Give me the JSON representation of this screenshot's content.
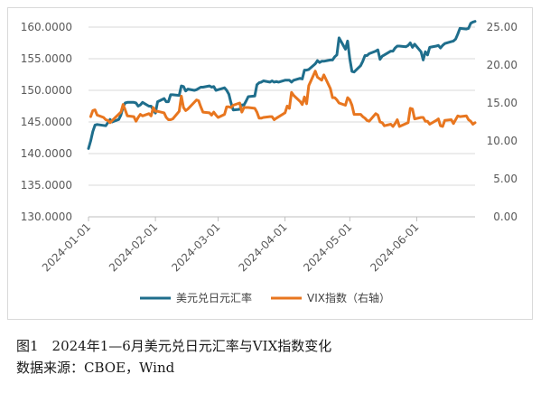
{
  "chart_data": {
    "type": "line",
    "left_axis": {
      "min": 130,
      "max": 160,
      "ticks": [
        "160.0000",
        "155.0000",
        "150.0000",
        "145.0000",
        "140.0000",
        "135.0000",
        "130.0000"
      ]
    },
    "right_axis": {
      "min": 0,
      "max": 25,
      "ticks": [
        "25.00",
        "20.00",
        "15.00",
        "10.00",
        "5.00",
        "0.00"
      ]
    },
    "x_ticks": [
      "2024-01-01",
      "2024-02-01",
      "2024-03-01",
      "2024-04-01",
      "2024-05-01",
      "2024-06-01"
    ],
    "x_range": [
      "2024-01-01",
      "2024-06-28"
    ],
    "grid": true,
    "legend_position": "bottom",
    "series": [
      {
        "name": "美元兑日元汇率",
        "axis": "left",
        "color": "#1f6e8c",
        "points": [
          [
            "2024-01-01",
            140.8
          ],
          [
            "2024-01-02",
            142.0
          ],
          [
            "2024-01-03",
            143.5
          ],
          [
            "2024-01-04",
            144.5
          ],
          [
            "2024-01-05",
            144.6
          ],
          [
            "2024-01-09",
            144.4
          ],
          [
            "2024-01-10",
            144.9
          ],
          [
            "2024-01-11",
            145.4
          ],
          [
            "2024-01-12",
            145.0
          ],
          [
            "2024-01-15",
            145.4
          ],
          [
            "2024-01-16",
            146.1
          ],
          [
            "2024-01-17",
            147.4
          ],
          [
            "2024-01-18",
            148.0
          ],
          [
            "2024-01-19",
            148.1
          ],
          [
            "2024-01-22",
            148.1
          ],
          [
            "2024-01-23",
            148.0
          ],
          [
            "2024-01-24",
            147.5
          ],
          [
            "2024-01-25",
            147.7
          ],
          [
            "2024-01-26",
            148.1
          ],
          [
            "2024-01-29",
            147.5
          ],
          [
            "2024-01-30",
            147.5
          ],
          [
            "2024-01-31",
            146.9
          ],
          [
            "2024-02-01",
            146.4
          ],
          [
            "2024-02-02",
            148.2
          ],
          [
            "2024-02-05",
            148.7
          ],
          [
            "2024-02-06",
            148.2
          ],
          [
            "2024-02-07",
            148.2
          ],
          [
            "2024-02-08",
            149.3
          ],
          [
            "2024-02-09",
            149.3
          ],
          [
            "2024-02-12",
            149.2
          ],
          [
            "2024-02-13",
            150.7
          ],
          [
            "2024-02-14",
            150.6
          ],
          [
            "2024-02-15",
            149.9
          ],
          [
            "2024-02-16",
            150.2
          ],
          [
            "2024-02-19",
            150.0
          ],
          [
            "2024-02-20",
            150.1
          ],
          [
            "2024-02-21",
            150.3
          ],
          [
            "2024-02-22",
            150.5
          ],
          [
            "2024-02-23",
            150.5
          ],
          [
            "2024-02-26",
            150.7
          ],
          [
            "2024-02-27",
            150.5
          ],
          [
            "2024-02-28",
            150.6
          ],
          [
            "2024-02-29",
            150.0
          ],
          [
            "2024-03-01",
            150.1
          ],
          [
            "2024-03-04",
            150.4
          ],
          [
            "2024-03-05",
            150.0
          ],
          [
            "2024-03-06",
            149.4
          ],
          [
            "2024-03-07",
            148.0
          ],
          [
            "2024-03-08",
            146.9
          ],
          [
            "2024-03-11",
            147.0
          ],
          [
            "2024-03-12",
            147.7
          ],
          [
            "2024-03-13",
            147.7
          ],
          [
            "2024-03-14",
            148.3
          ],
          [
            "2024-03-15",
            149.0
          ],
          [
            "2024-03-18",
            149.1
          ],
          [
            "2024-03-19",
            150.9
          ],
          [
            "2024-03-20",
            151.2
          ],
          [
            "2024-03-21",
            151.3
          ],
          [
            "2024-03-22",
            151.5
          ],
          [
            "2024-03-25",
            151.3
          ],
          [
            "2024-03-26",
            151.5
          ],
          [
            "2024-03-27",
            151.3
          ],
          [
            "2024-03-28",
            151.4
          ],
          [
            "2024-03-29",
            151.3
          ],
          [
            "2024-04-01",
            151.6
          ],
          [
            "2024-04-02",
            151.6
          ],
          [
            "2024-04-03",
            151.6
          ],
          [
            "2024-04-04",
            151.3
          ],
          [
            "2024-04-05",
            151.6
          ],
          [
            "2024-04-08",
            151.9
          ],
          [
            "2024-04-09",
            151.8
          ],
          [
            "2024-04-10",
            153.2
          ],
          [
            "2024-04-11",
            153.2
          ],
          [
            "2024-04-12",
            153.3
          ],
          [
            "2024-04-15",
            154.2
          ],
          [
            "2024-04-16",
            154.7
          ],
          [
            "2024-04-17",
            154.4
          ],
          [
            "2024-04-18",
            154.6
          ],
          [
            "2024-04-19",
            154.6
          ],
          [
            "2024-04-22",
            154.8
          ],
          [
            "2024-04-23",
            154.8
          ],
          [
            "2024-04-24",
            155.3
          ],
          [
            "2024-04-25",
            155.6
          ],
          [
            "2024-04-26",
            158.3
          ],
          [
            "2024-04-29",
            156.5
          ],
          [
            "2024-04-30",
            157.8
          ],
          [
            "2024-05-01",
            155.0
          ],
          [
            "2024-05-02",
            153.0
          ],
          [
            "2024-05-03",
            152.9
          ],
          [
            "2024-05-06",
            153.9
          ],
          [
            "2024-05-07",
            154.6
          ],
          [
            "2024-05-08",
            155.5
          ],
          [
            "2024-05-09",
            155.5
          ],
          [
            "2024-05-10",
            155.8
          ],
          [
            "2024-05-13",
            156.2
          ],
          [
            "2024-05-14",
            156.4
          ],
          [
            "2024-05-15",
            154.9
          ],
          [
            "2024-05-16",
            155.4
          ],
          [
            "2024-05-17",
            155.6
          ],
          [
            "2024-05-20",
            156.2
          ],
          [
            "2024-05-21",
            156.2
          ],
          [
            "2024-05-22",
            156.7
          ],
          [
            "2024-05-23",
            157.0
          ],
          [
            "2024-05-24",
            157.0
          ],
          [
            "2024-05-27",
            156.9
          ],
          [
            "2024-05-28",
            157.1
          ],
          [
            "2024-05-29",
            157.5
          ],
          [
            "2024-05-30",
            156.8
          ],
          [
            "2024-05-31",
            157.3
          ],
          [
            "2024-06-03",
            156.1
          ],
          [
            "2024-06-04",
            154.8
          ],
          [
            "2024-06-05",
            156.1
          ],
          [
            "2024-06-06",
            155.6
          ],
          [
            "2024-06-07",
            156.8
          ],
          [
            "2024-06-10",
            157.0
          ],
          [
            "2024-06-11",
            157.1
          ],
          [
            "2024-06-12",
            156.7
          ],
          [
            "2024-06-13",
            157.1
          ],
          [
            "2024-06-14",
            157.4
          ],
          [
            "2024-06-17",
            157.7
          ],
          [
            "2024-06-18",
            157.8
          ],
          [
            "2024-06-19",
            158.1
          ],
          [
            "2024-06-20",
            158.9
          ],
          [
            "2024-06-21",
            159.8
          ],
          [
            "2024-06-24",
            159.7
          ],
          [
            "2024-06-25",
            159.8
          ],
          [
            "2024-06-26",
            160.6
          ],
          [
            "2024-06-27",
            160.8
          ],
          [
            "2024-06-28",
            160.9
          ]
        ]
      },
      {
        "name": "VIX指数（右轴）",
        "axis": "right",
        "color": "#e8761f",
        "points": [
          [
            "2024-01-02",
            13.2
          ],
          [
            "2024-01-03",
            14.0
          ],
          [
            "2024-01-04",
            14.1
          ],
          [
            "2024-01-05",
            13.4
          ],
          [
            "2024-01-08",
            13.1
          ],
          [
            "2024-01-09",
            12.8
          ],
          [
            "2024-01-10",
            12.7
          ],
          [
            "2024-01-11",
            12.4
          ],
          [
            "2024-01-12",
            12.7
          ],
          [
            "2024-01-16",
            13.8
          ],
          [
            "2024-01-17",
            14.8
          ],
          [
            "2024-01-18",
            14.1
          ],
          [
            "2024-01-19",
            13.3
          ],
          [
            "2024-01-22",
            13.2
          ],
          [
            "2024-01-23",
            12.6
          ],
          [
            "2024-01-24",
            13.1
          ],
          [
            "2024-01-25",
            13.5
          ],
          [
            "2024-01-26",
            13.3
          ],
          [
            "2024-01-29",
            13.6
          ],
          [
            "2024-01-30",
            13.3
          ],
          [
            "2024-01-31",
            14.4
          ],
          [
            "2024-02-01",
            13.9
          ],
          [
            "2024-02-02",
            13.9
          ],
          [
            "2024-02-05",
            13.7
          ],
          [
            "2024-02-06",
            13.1
          ],
          [
            "2024-02-07",
            12.8
          ],
          [
            "2024-02-08",
            12.8
          ],
          [
            "2024-02-09",
            12.9
          ],
          [
            "2024-02-12",
            13.9
          ],
          [
            "2024-02-13",
            15.9
          ],
          [
            "2024-02-14",
            14.4
          ],
          [
            "2024-02-15",
            14.0
          ],
          [
            "2024-02-16",
            14.2
          ],
          [
            "2024-02-20",
            15.4
          ],
          [
            "2024-02-21",
            15.3
          ],
          [
            "2024-02-22",
            14.5
          ],
          [
            "2024-02-23",
            13.8
          ],
          [
            "2024-02-26",
            13.7
          ],
          [
            "2024-02-27",
            13.4
          ],
          [
            "2024-02-28",
            13.8
          ],
          [
            "2024-02-29",
            13.4
          ],
          [
            "2024-03-01",
            13.1
          ],
          [
            "2024-03-04",
            13.5
          ],
          [
            "2024-03-05",
            14.5
          ],
          [
            "2024-03-06",
            14.5
          ],
          [
            "2024-03-07",
            14.4
          ],
          [
            "2024-03-08",
            14.7
          ],
          [
            "2024-03-11",
            15.0
          ],
          [
            "2024-03-12",
            13.8
          ],
          [
            "2024-03-13",
            14.4
          ],
          [
            "2024-03-14",
            14.4
          ],
          [
            "2024-03-15",
            14.4
          ],
          [
            "2024-03-18",
            14.3
          ],
          [
            "2024-03-19",
            13.8
          ],
          [
            "2024-03-20",
            13.0
          ],
          [
            "2024-03-21",
            13.0
          ],
          [
            "2024-03-22",
            13.1
          ],
          [
            "2024-03-25",
            13.2
          ],
          [
            "2024-03-26",
            13.2
          ],
          [
            "2024-03-27",
            12.8
          ],
          [
            "2024-03-28",
            13.0
          ],
          [
            "2024-04-01",
            13.7
          ],
          [
            "2024-04-02",
            14.6
          ],
          [
            "2024-04-03",
            14.3
          ],
          [
            "2024-04-04",
            16.4
          ],
          [
            "2024-04-05",
            16.0
          ],
          [
            "2024-04-08",
            15.2
          ],
          [
            "2024-04-09",
            14.8
          ],
          [
            "2024-04-10",
            15.8
          ],
          [
            "2024-04-11",
            14.9
          ],
          [
            "2024-04-12",
            17.3
          ],
          [
            "2024-04-15",
            19.2
          ],
          [
            "2024-04-16",
            18.4
          ],
          [
            "2024-04-17",
            18.2
          ],
          [
            "2024-04-18",
            18.0
          ],
          [
            "2024-04-19",
            18.7
          ],
          [
            "2024-04-22",
            16.9
          ],
          [
            "2024-04-23",
            15.7
          ],
          [
            "2024-04-24",
            15.7
          ],
          [
            "2024-04-25",
            15.4
          ],
          [
            "2024-04-26",
            15.0
          ],
          [
            "2024-04-29",
            14.7
          ],
          [
            "2024-04-30",
            15.7
          ],
          [
            "2024-05-01",
            15.4
          ],
          [
            "2024-05-02",
            14.7
          ],
          [
            "2024-05-03",
            13.5
          ],
          [
            "2024-05-06",
            13.5
          ],
          [
            "2024-05-07",
            13.2
          ],
          [
            "2024-05-08",
            13.0
          ],
          [
            "2024-05-09",
            12.7
          ],
          [
            "2024-05-10",
            12.6
          ],
          [
            "2024-05-13",
            13.6
          ],
          [
            "2024-05-14",
            13.4
          ],
          [
            "2024-05-15",
            12.5
          ],
          [
            "2024-05-16",
            12.4
          ],
          [
            "2024-05-17",
            12.0
          ],
          [
            "2024-05-20",
            12.2
          ],
          [
            "2024-05-21",
            11.9
          ],
          [
            "2024-05-22",
            12.3
          ],
          [
            "2024-05-23",
            12.8
          ],
          [
            "2024-05-24",
            11.9
          ],
          [
            "2024-05-28",
            12.4
          ],
          [
            "2024-05-29",
            14.3
          ],
          [
            "2024-05-30",
            14.2
          ],
          [
            "2024-05-31",
            12.9
          ],
          [
            "2024-06-03",
            13.1
          ],
          [
            "2024-06-04",
            13.1
          ],
          [
            "2024-06-05",
            12.6
          ],
          [
            "2024-06-06",
            12.6
          ],
          [
            "2024-06-07",
            12.2
          ],
          [
            "2024-06-10",
            12.7
          ],
          [
            "2024-06-11",
            12.9
          ],
          [
            "2024-06-12",
            12.0
          ],
          [
            "2024-06-13",
            11.9
          ],
          [
            "2024-06-14",
            12.7
          ],
          [
            "2024-06-17",
            12.8
          ],
          [
            "2024-06-18",
            12.3
          ],
          [
            "2024-06-20",
            13.3
          ],
          [
            "2024-06-21",
            13.2
          ],
          [
            "2024-06-24",
            13.3
          ],
          [
            "2024-06-25",
            12.8
          ],
          [
            "2024-06-26",
            12.6
          ],
          [
            "2024-06-27",
            12.2
          ],
          [
            "2024-06-28",
            12.4
          ]
        ]
      }
    ]
  },
  "caption": {
    "title": "图1　2024年1—6月美元兑日元汇率与VIX指数变化",
    "source": "数据来源：CBOE，Wind"
  }
}
